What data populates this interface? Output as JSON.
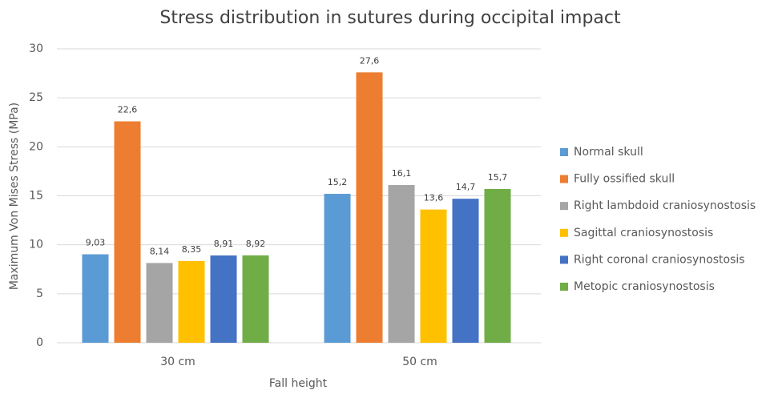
{
  "chart_data": {
    "type": "bar",
    "title": "Stress distribution in sutures during occipital impact",
    "x_label": "Fall height",
    "y_label": "Maximum Von Mises Stress (MPa)",
    "categories": [
      "30 cm",
      "50 cm"
    ],
    "series": [
      {
        "name": "Normal skull",
        "color": "#5b9bd5",
        "values": [
          9.03,
          15.2
        ],
        "value_labels": [
          "9,03",
          "15,2"
        ]
      },
      {
        "name": "Fully ossified skull",
        "color": "#ed7d31",
        "values": [
          22.6,
          27.6
        ],
        "value_labels": [
          "22,6",
          "27,6"
        ]
      },
      {
        "name": "Right lambdoid craniosynostosis",
        "color": "#a5a5a5",
        "values": [
          8.14,
          16.1
        ],
        "value_labels": [
          "8,14",
          "16,1"
        ]
      },
      {
        "name": "Sagittal craniosynostosis",
        "color": "#ffc000",
        "values": [
          8.35,
          13.6
        ],
        "value_labels": [
          "8,35",
          "13,6"
        ]
      },
      {
        "name": "Right coronal craniosynostosis",
        "color": "#4472c4",
        "values": [
          8.91,
          14.7
        ],
        "value_labels": [
          "8,91",
          "14,7"
        ]
      },
      {
        "name": "Metopic craniosynostosis",
        "color": "#70ad47",
        "values": [
          8.92,
          15.7
        ],
        "value_labels": [
          "8,92",
          "15,7"
        ]
      }
    ],
    "ylim": [
      0,
      30
    ],
    "yticks": [
      0,
      5,
      10,
      15,
      20,
      25,
      30
    ],
    "grid": true,
    "legend": "right"
  }
}
